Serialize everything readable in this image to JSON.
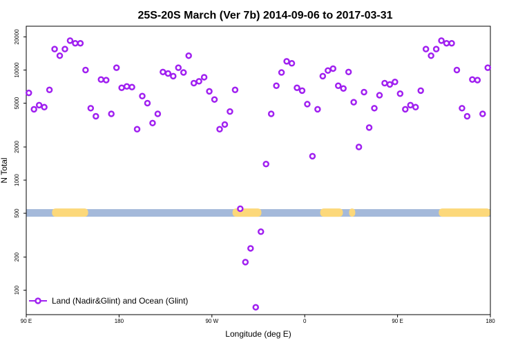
{
  "chart_data": {
    "type": "scatter",
    "title": "25S-20S March (Ver 7b)   2014-09-06 to 2017-03-31",
    "xlabel": "Longitude (deg E)",
    "ylabel": "N Total",
    "y_scale": "log",
    "xlim": [
      90,
      540
    ],
    "ylim": [
      60,
      25000
    ],
    "x_ticks": [
      {
        "value": 90,
        "label": "90 E"
      },
      {
        "value": 180,
        "label": "180"
      },
      {
        "value": 270,
        "label": "90 W"
      },
      {
        "value": 360,
        "label": "0"
      },
      {
        "value": 450,
        "label": "90 E"
      },
      {
        "value": 540,
        "label": "180"
      }
    ],
    "y_ticks": [
      {
        "value": 100,
        "label": "100"
      },
      {
        "value": 200,
        "label": "200"
      },
      {
        "value": 500,
        "label": "500"
      },
      {
        "value": 1000,
        "label": "1000"
      },
      {
        "value": 2000,
        "label": "2000"
      },
      {
        "value": 5000,
        "label": "5000"
      },
      {
        "value": 10000,
        "label": "10000"
      },
      {
        "value": 20000,
        "label": "20000"
      }
    ],
    "surface_strip": {
      "y_value": 500,
      "ocean_color": "#a4b9da",
      "land_color": "#fcd87a",
      "land_ranges": [
        [
          115,
          150
        ],
        [
          290,
          318
        ],
        [
          375,
          397
        ],
        [
          403,
          409
        ],
        [
          490,
          547
        ]
      ]
    },
    "legend": {
      "label": "Land (Nadir&Glint) and Ocean (Glint)",
      "position": "bottom-left"
    },
    "colors": {
      "series": "#a020f0"
    },
    "series": [
      {
        "name": "Land (Nadir&Glint) and Ocean (Glint)",
        "points": [
          [
            92.5,
            6200
          ],
          [
            97.5,
            4400
          ],
          [
            102.5,
            4800
          ],
          [
            107.5,
            4600
          ],
          [
            112.5,
            6600
          ],
          [
            117.5,
            15500
          ],
          [
            122.5,
            13500
          ],
          [
            127.5,
            15500
          ],
          [
            132.5,
            18500
          ],
          [
            137.5,
            17500
          ],
          [
            142.5,
            17500
          ],
          [
            147.5,
            10000
          ],
          [
            152.5,
            4500
          ],
          [
            157.5,
            3800
          ],
          [
            162.5,
            8200
          ],
          [
            167.5,
            8100
          ],
          [
            172.5,
            4000
          ],
          [
            177.5,
            10500
          ],
          [
            182.5,
            6900
          ],
          [
            187.5,
            7100
          ],
          [
            192.5,
            7000
          ],
          [
            197.5,
            2900
          ],
          [
            202.5,
            5800
          ],
          [
            207.5,
            5000
          ],
          [
            212.5,
            3300
          ],
          [
            217.5,
            4000
          ],
          [
            222.5,
            9600
          ],
          [
            227.5,
            9300
          ],
          [
            232.5,
            8800
          ],
          [
            237.5,
            10500
          ],
          [
            242.5,
            9500
          ],
          [
            247.5,
            13500
          ],
          [
            252.5,
            7600
          ],
          [
            257.5,
            7900
          ],
          [
            262.5,
            8600
          ],
          [
            267.5,
            6400
          ],
          [
            272.5,
            5400
          ],
          [
            277.5,
            2900
          ],
          [
            282.5,
            3200
          ],
          [
            287.5,
            4200
          ],
          [
            292.5,
            6600
          ],
          [
            297.5,
            550
          ],
          [
            302.5,
            180
          ],
          [
            307.5,
            240
          ],
          [
            312.5,
            70
          ],
          [
            317.5,
            340
          ],
          [
            322.5,
            1400
          ],
          [
            327.5,
            4000
          ],
          [
            332.5,
            7200
          ],
          [
            337.5,
            9500
          ],
          [
            342.5,
            12000
          ],
          [
            347.5,
            11500
          ],
          [
            352.5,
            6900
          ],
          [
            357.5,
            6500
          ],
          [
            362.5,
            4900
          ],
          [
            367.5,
            1650
          ],
          [
            372.5,
            4400
          ],
          [
            377.5,
            8800
          ],
          [
            382.5,
            9900
          ],
          [
            387.5,
            10300
          ],
          [
            392.5,
            7200
          ],
          [
            397.5,
            6800
          ],
          [
            402.5,
            9600
          ],
          [
            407.5,
            5100
          ],
          [
            412.5,
            2000
          ],
          [
            417.5,
            6300
          ],
          [
            422.5,
            3000
          ],
          [
            427.5,
            4500
          ],
          [
            432.5,
            5900
          ],
          [
            437.5,
            7600
          ],
          [
            442.5,
            7400
          ],
          [
            447.5,
            7800
          ],
          [
            452.5,
            6100
          ],
          [
            457.5,
            4400
          ],
          [
            462.5,
            4800
          ],
          [
            467.5,
            4600
          ],
          [
            472.5,
            6500
          ],
          [
            477.5,
            15500
          ],
          [
            482.5,
            13500
          ],
          [
            487.5,
            15500
          ],
          [
            492.5,
            18500
          ],
          [
            497.5,
            17500
          ],
          [
            502.5,
            17500
          ],
          [
            507.5,
            10000
          ],
          [
            512.5,
            4500
          ],
          [
            517.5,
            3800
          ],
          [
            522.5,
            8200
          ],
          [
            527.5,
            8100
          ],
          [
            532.5,
            4000
          ],
          [
            537.5,
            10500
          ]
        ]
      }
    ]
  }
}
